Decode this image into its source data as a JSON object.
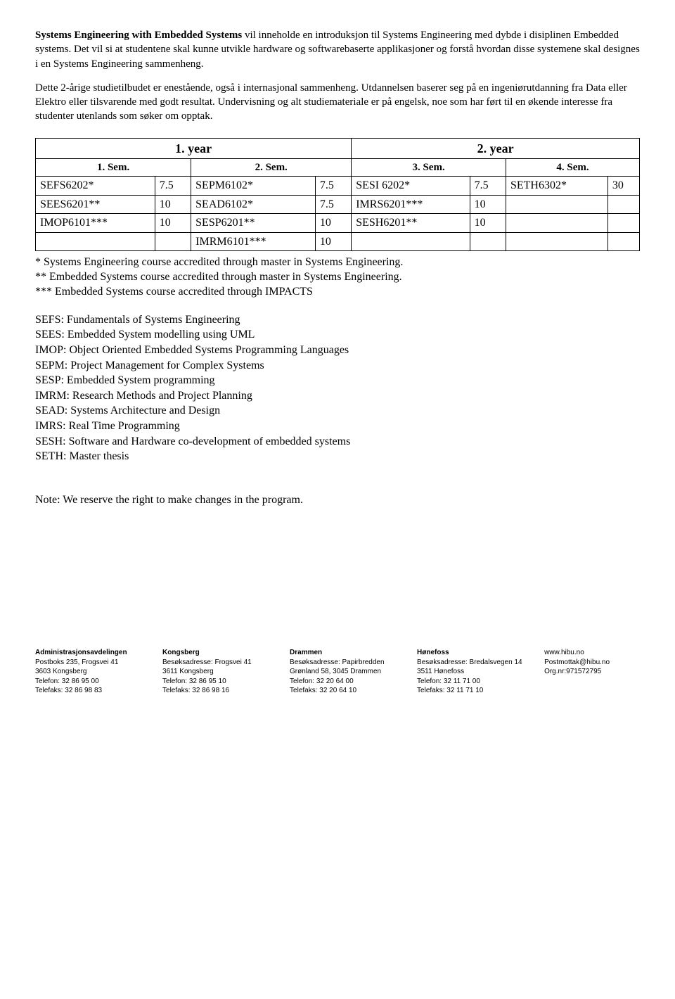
{
  "para1": {
    "strong": "Systems Engineering with Embedded Systems",
    "rest": " vil inneholde en introduksjon til Systems Engineering med dybde i disiplinen Embedded systems. Det vil si at studentene skal kunne utvikle hardware og softwarebaserte applikasjoner og forstå hvordan disse systemene skal designes i en Systems Engineering sammenheng."
  },
  "para2": "Dette 2-årige studietilbudet er enestående, også i internasjonal sammenheng. Utdannelsen baserer seg på en ingeniørutdanning fra Data eller Elektro eller tilsvarende med godt resultat. Undervisning og alt studiemateriale er på engelsk, noe som har ført til en økende interesse fra studenter utenlands som søker om opptak.",
  "table": {
    "year_headers": [
      "1. year",
      "2. year"
    ],
    "sem_headers": [
      "1. Sem.",
      "2. Sem.",
      "3. Sem.",
      "4. Sem."
    ],
    "rows": [
      [
        "SEFS6202*",
        "7.5",
        "SEPM6102*",
        "7.5",
        "SESI 6202*",
        "7.5",
        "SETH6302*",
        "30"
      ],
      [
        "SEES6201**",
        "10",
        "SEAD6102*",
        "7.5",
        "IMRS6201***",
        "10",
        "",
        ""
      ],
      [
        "IMOP6101***",
        "10",
        "SESP6201**",
        "10",
        "SESH6201**",
        "10",
        "",
        ""
      ],
      [
        "",
        "",
        "IMRM6101***",
        "10",
        "",
        "",
        "",
        ""
      ]
    ]
  },
  "table_notes": [
    "* Systems Engineering course accredited through master in Systems Engineering.",
    "** Embedded Systems course accredited through master in Systems Engineering.",
    "*** Embedded Systems course accredited through IMPACTS"
  ],
  "legend": [
    "SEFS: Fundamentals of Systems Engineering",
    "SEES: Embedded System modelling using UML",
    "IMOP: Object Oriented Embedded Systems Programming Languages",
    "SEPM: Project Management for Complex Systems",
    "SESP: Embedded System programming",
    "IMRM: Research Methods and Project Planning",
    "SEAD: Systems Architecture and Design",
    "IMRS: Real Time Programming",
    "SESH: Software and Hardware co-development of embedded systems",
    "SETH: Master thesis"
  ],
  "reserve": "Note:  We reserve the right to make changes in the program.",
  "footer": {
    "col1": {
      "head": "Administrasjonsavdelingen",
      "lines": [
        "Postboks 235, Frogsvei 41",
        "3603 Kongsberg",
        "Telefon:  32 86 95 00",
        "Telefaks: 32 86 98 83"
      ]
    },
    "col2": {
      "head": "Kongsberg",
      "lines": [
        "Besøksadresse: Frogsvei 41",
        "3611 Kongsberg",
        "Telefon:  32 86 95 10",
        "Telefaks: 32 86 98 16"
      ]
    },
    "col3": {
      "head": "Drammen",
      "lines": [
        "Besøksadresse: Papirbredden",
        "Grønland 58, 3045 Drammen",
        "Telefon:  32 20 64 00",
        "Telefaks: 32 20 64 10"
      ]
    },
    "col4": {
      "head": "Hønefoss",
      "lines": [
        "Besøksadresse: Bredalsvegen 14",
        "3511 Hønefoss",
        "Telefon:  32 11 71 00",
        "Telefaks: 32 11 71 10"
      ]
    },
    "col5": {
      "lines": [
        "www.hibu.no",
        "Postmottak@hibu.no",
        "Org.nr:971572795"
      ]
    }
  }
}
